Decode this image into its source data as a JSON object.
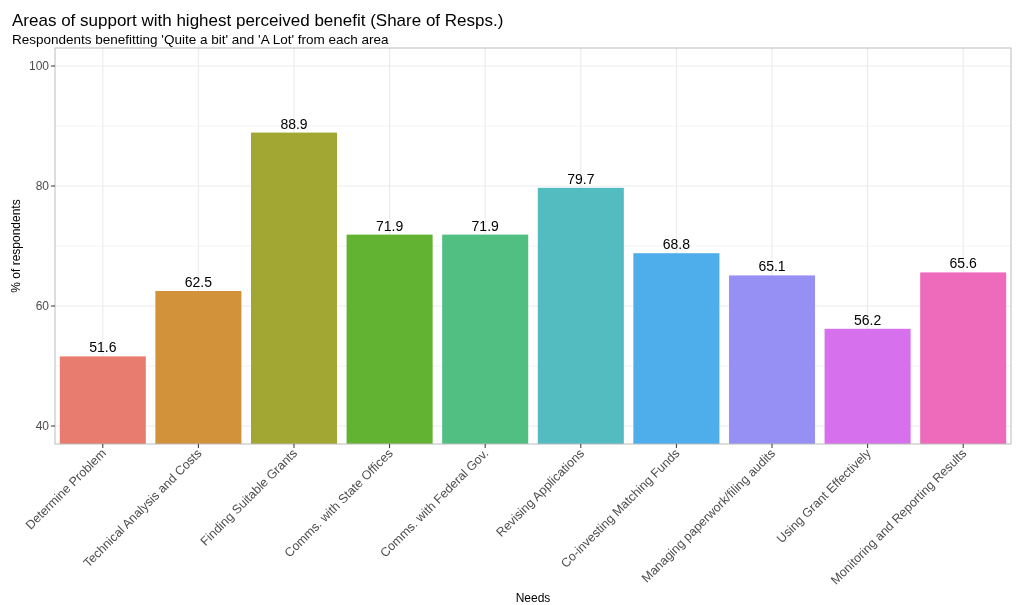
{
  "chart_data": {
    "type": "bar",
    "title": "Areas of support with highest perceived benefit (Share of Resps.)",
    "subtitle": "Respondents benefitting 'Quite a bit' and 'A Lot' from each area",
    "xlabel": "Needs",
    "ylabel": "% of respondents",
    "categories": [
      "Determine Problem",
      "Technical Analysis and Costs",
      "Finding Suitable Grants",
      "Comms. with State Offices",
      "Comms. with Federal Gov.",
      "Revising Applications",
      "Co-investing Matching Funds",
      "Managing paperwork/filing audits",
      "Using Grant Effectively",
      "Monitoring and Reporting Results"
    ],
    "values": [
      51.6,
      62.5,
      88.9,
      71.9,
      71.9,
      79.7,
      68.8,
      65.1,
      56.2,
      65.6
    ],
    "colors": [
      "#e87d6f",
      "#d1923a",
      "#a2a633",
      "#63b333",
      "#52bf82",
      "#52bcc0",
      "#4daeeb",
      "#9690f5",
      "#d670ec",
      "#ee6bbb"
    ],
    "ylim": [
      37,
      103
    ],
    "yticks": [
      40,
      {
        "value": 50,
        "label": null
      },
      60,
      {
        "value": 70,
        "label": null
      },
      80,
      {
        "value": 90,
        "label": null
      },
      100
    ],
    "grid": true,
    "data_labels": true
  }
}
